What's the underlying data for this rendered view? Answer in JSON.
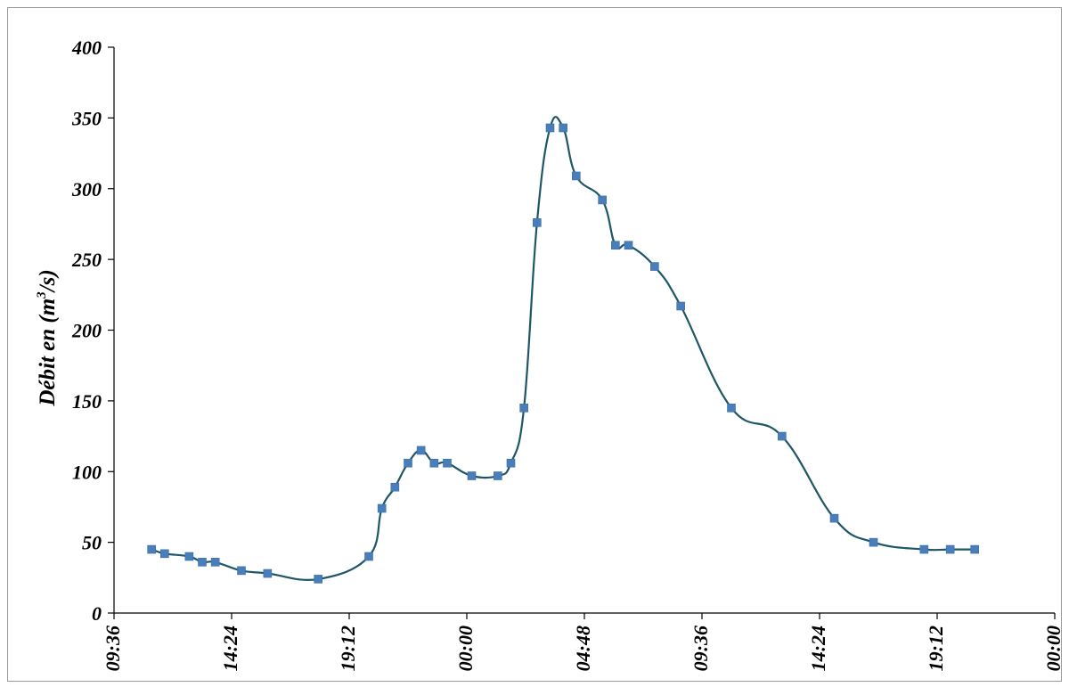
{
  "chart_data": {
    "type": "line",
    "title": "",
    "xlabel": "",
    "ylabel_main": "Débit en (m",
    "ylabel_sup": "3",
    "ylabel_tail": "/s)",
    "ylim": [
      0,
      400
    ],
    "yticks": [
      0,
      50,
      100,
      150,
      200,
      250,
      300,
      350,
      400
    ],
    "ytick_labels": [
      "0",
      "50",
      "100",
      "150",
      "200",
      "250",
      "300",
      "350",
      "400"
    ],
    "xlim": [
      "09:36",
      "00:00 (+2 days)"
    ],
    "xticks": [
      "09:36",
      "14:24",
      "19:12",
      "00:00",
      "04:48",
      "09:36",
      "14:24",
      "19:12",
      "00:00"
    ],
    "series": [
      {
        "color": "#1f5668",
        "marker_color": "#4a7ebb",
        "smooth": true,
        "x": [
          "11:08",
          "11:40",
          "12:40",
          "13:12",
          "13:44",
          "14:48",
          "15:52",
          "17:56",
          "20:00",
          "20:32",
          "21:04",
          "21:36",
          "22:08",
          "22:40",
          "23:12",
          "00:12",
          "01:16",
          "01:48",
          "02:20",
          "02:52",
          "03:24",
          "03:56",
          "04:28",
          "05:32",
          "06:04",
          "06:36",
          "07:40",
          "08:44",
          "10:48",
          "12:52",
          "15:00",
          "16:36",
          "18:40",
          "19:44",
          "20:44"
        ],
        "y": [
          45,
          42,
          40,
          36,
          36,
          30,
          28,
          24,
          40,
          74,
          89,
          106,
          115,
          106,
          106,
          97,
          97,
          106,
          145,
          276,
          343,
          343,
          309,
          292,
          260,
          260,
          245,
          217,
          145,
          125,
          67,
          50,
          45,
          45,
          45
        ]
      }
    ]
  }
}
